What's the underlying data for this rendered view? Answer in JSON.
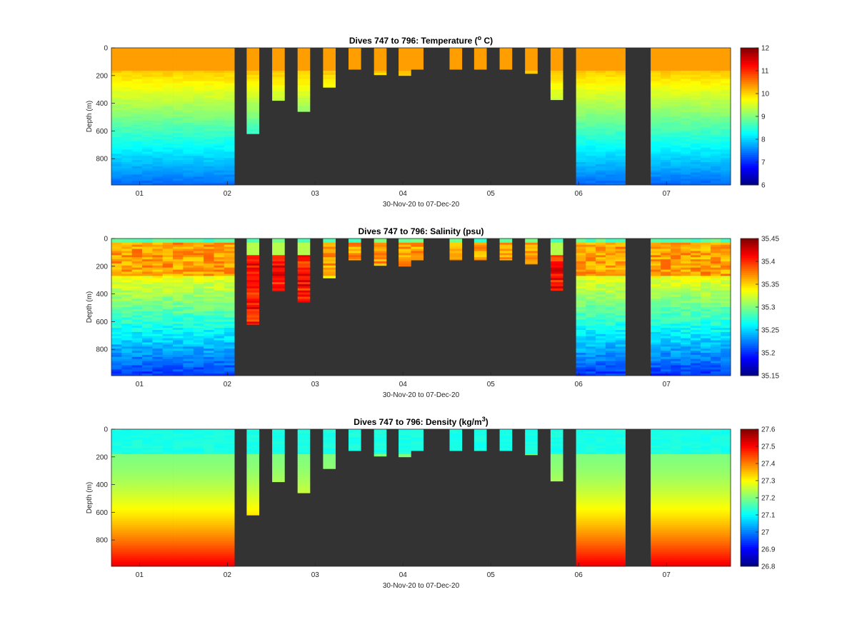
{
  "chart_data": [
    {
      "type": "heatmap",
      "title": "Dives 747 to 796: Temperature (",
      "title_sup": "o",
      "title_end": " C)",
      "xlabel": "30-Nov-20 to 07-Dec-20",
      "ylabel": "Depth (m)",
      "x_ticks": [
        "01",
        "02",
        "03",
        "04",
        "05",
        "06",
        "07"
      ],
      "y_ticks": [
        "0",
        "200",
        "400",
        "600",
        "800"
      ],
      "ylim": [
        0,
        990
      ],
      "colorbar": {
        "min": 6,
        "max": 12,
        "ticks": [
          "6",
          "7",
          "8",
          "9",
          "10",
          "11",
          "12"
        ]
      },
      "colormap": "jet",
      "no_data_color": "#333333"
    },
    {
      "type": "heatmap",
      "title": "Dives 747 to 796: Salinity (psu)",
      "title_sup": "",
      "title_end": "",
      "xlabel": "30-Nov-20 to 07-Dec-20",
      "ylabel": "Depth (m)",
      "x_ticks": [
        "01",
        "02",
        "03",
        "04",
        "05",
        "06",
        "07"
      ],
      "y_ticks": [
        "0",
        "200",
        "400",
        "600",
        "800"
      ],
      "ylim": [
        0,
        990
      ],
      "colorbar": {
        "min": 35.15,
        "max": 35.45,
        "ticks": [
          "35.15",
          "35.2",
          "35.25",
          "35.3",
          "35.35",
          "35.4",
          "35.45"
        ]
      },
      "colormap": "jet",
      "no_data_color": "#333333"
    },
    {
      "type": "heatmap",
      "title": "Dives 747 to 796: Density (kg/m",
      "title_sup": "3",
      "title_end": ")",
      "xlabel": "30-Nov-20 to 07-Dec-20",
      "ylabel": "Depth (m)",
      "x_ticks": [
        "01",
        "02",
        "03",
        "04",
        "05",
        "06",
        "07"
      ],
      "y_ticks": [
        "0",
        "200",
        "400",
        "600",
        "800"
      ],
      "ylim": [
        0,
        990
      ],
      "colorbar": {
        "min": 26.8,
        "max": 27.6,
        "ticks": [
          "26.8",
          "26.9",
          "27",
          "27.1",
          "27.2",
          "27.3",
          "27.4",
          "27.5",
          "27.6"
        ]
      },
      "colormap": "jet",
      "no_data_color": "#333333"
    }
  ],
  "profiles": [
    {
      "day_start": 0.0,
      "day_end": 1.4,
      "max_depth": 990
    },
    {
      "day_start": 1.54,
      "day_end": 1.68,
      "max_depth": 620
    },
    {
      "day_start": 1.83,
      "day_end": 1.97,
      "max_depth": 380
    },
    {
      "day_start": 2.12,
      "day_end": 2.26,
      "max_depth": 460
    },
    {
      "day_start": 2.41,
      "day_end": 2.55,
      "max_depth": 285
    },
    {
      "day_start": 2.7,
      "day_end": 2.84,
      "max_depth": 155
    },
    {
      "day_start": 2.99,
      "day_end": 3.13,
      "max_depth": 195
    },
    {
      "day_start": 3.27,
      "day_end": 3.41,
      "max_depth": 200
    },
    {
      "day_start": 3.41,
      "day_end": 3.55,
      "max_depth": 155
    },
    {
      "day_start": 3.85,
      "day_end": 3.99,
      "max_depth": 155
    },
    {
      "day_start": 4.13,
      "day_end": 4.27,
      "max_depth": 155
    },
    {
      "day_start": 4.42,
      "day_end": 4.56,
      "max_depth": 155
    },
    {
      "day_start": 4.71,
      "day_end": 4.85,
      "max_depth": 185
    },
    {
      "day_start": 5.0,
      "day_end": 5.14,
      "max_depth": 375
    },
    {
      "day_start": 5.29,
      "day_end": 5.85,
      "max_depth": 990
    },
    {
      "day_start": 6.14,
      "day_end": 7.1,
      "max_depth": 990
    }
  ]
}
